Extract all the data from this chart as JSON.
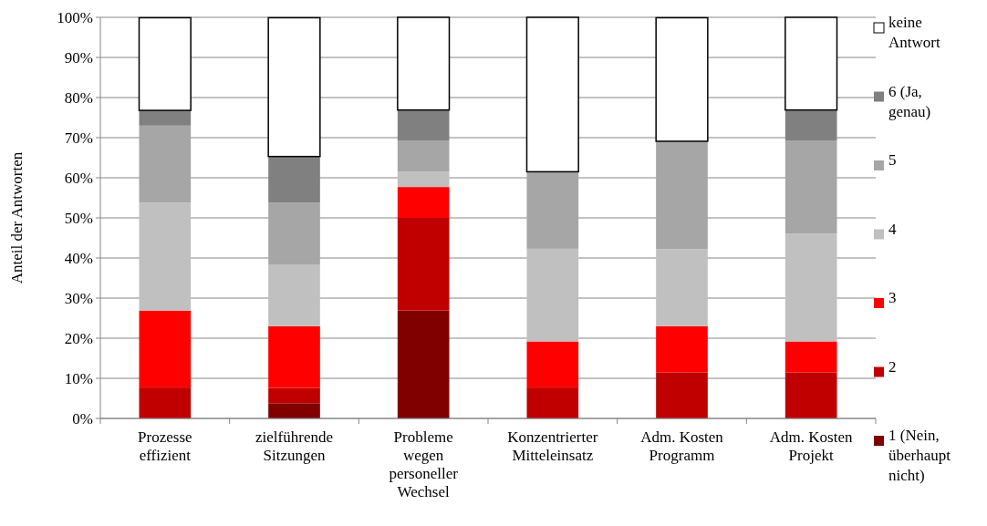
{
  "chart_data": {
    "type": "bar",
    "stacked": true,
    "ylabel": "Anteil der Antworten",
    "categories": [
      "Prozesse effizient",
      "zielführende Sitzungen",
      "Probleme wegen personeller Wechsel",
      "Konzentrierter Mitteleinsatz",
      "Adm. Kosten Programm",
      "Adm. Kosten Projekt"
    ],
    "series": [
      {
        "name": "1 (Nein, überhaupt nicht)",
        "color": "#800000",
        "values": [
          0,
          3.8,
          26.9,
          0,
          0,
          0
        ]
      },
      {
        "name": "2",
        "color": "#c00000",
        "values": [
          7.7,
          3.8,
          23.1,
          7.7,
          11.5,
          11.5
        ]
      },
      {
        "name": "3",
        "color": "#ff0000",
        "values": [
          19.2,
          15.4,
          7.7,
          11.5,
          11.5,
          7.7
        ]
      },
      {
        "name": "4",
        "color": "#c0c0c0",
        "values": [
          26.9,
          15.4,
          3.8,
          23.1,
          19.2,
          26.9
        ]
      },
      {
        "name": "5",
        "color": "#a6a6a6",
        "values": [
          19.2,
          15.4,
          7.7,
          19.2,
          26.9,
          23.1
        ]
      },
      {
        "name": "6 (Ja, genau)",
        "color": "#808080",
        "values": [
          3.8,
          11.5,
          7.7,
          0,
          0,
          7.7
        ]
      },
      {
        "name": "keine Antwort",
        "color": "#ffffff",
        "values": [
          23.1,
          34.6,
          23.1,
          38.5,
          30.8,
          23.1
        ]
      }
    ],
    "ylim": [
      0,
      100
    ],
    "yticks": [
      {
        "value": 0,
        "label": "0%"
      },
      {
        "value": 10,
        "label": "10%"
      },
      {
        "value": 20,
        "label": "20%"
      },
      {
        "value": 30,
        "label": "30%"
      },
      {
        "value": 40,
        "label": "40%"
      },
      {
        "value": 50,
        "label": "50%"
      },
      {
        "value": 60,
        "label": "60%"
      },
      {
        "value": 70,
        "label": "70%"
      },
      {
        "value": 80,
        "label": "80%"
      },
      {
        "value": 90,
        "label": "90%"
      },
      {
        "value": 100,
        "label": "100%"
      }
    ],
    "grid": "y",
    "legend": "right"
  }
}
